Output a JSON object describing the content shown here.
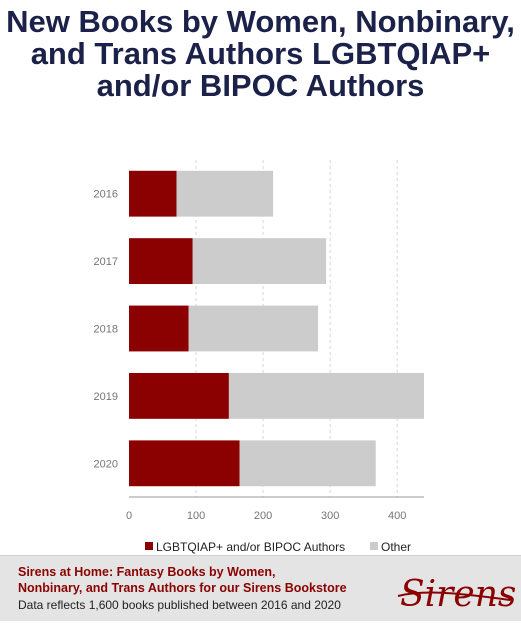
{
  "chart_data": {
    "type": "bar",
    "orientation": "horizontal",
    "stacked": true,
    "title": "New Books by Women, Nonbinary, and Trans Authors LGBTQIAP+ and/or BIPOC Authors",
    "categories": [
      "2016",
      "2017",
      "2018",
      "2019",
      "2020"
    ],
    "series": [
      {
        "name": "LGBTQIAP+ and/or BIPOC Authors",
        "color": "#8b0000",
        "values": [
          71,
          95,
          89,
          149,
          165
        ]
      },
      {
        "name": "Other",
        "color": "#cccccc",
        "values": [
          144,
          199,
          193,
          291,
          203
        ]
      }
    ],
    "xticks": [
      "0",
      "100",
      "200",
      "300",
      "400"
    ],
    "xlim": [
      0,
      440
    ],
    "grid": true,
    "legend_position": "bottom"
  },
  "footer": {
    "title_line1": "Sirens at Home: Fantasy Books by Women,",
    "title_line2": "Nonbinary, and Trans Authors for our Sirens Bookstore",
    "note": "Data reflects 1,600 books published between 2016 and 2020",
    "logo": "Sirens"
  }
}
